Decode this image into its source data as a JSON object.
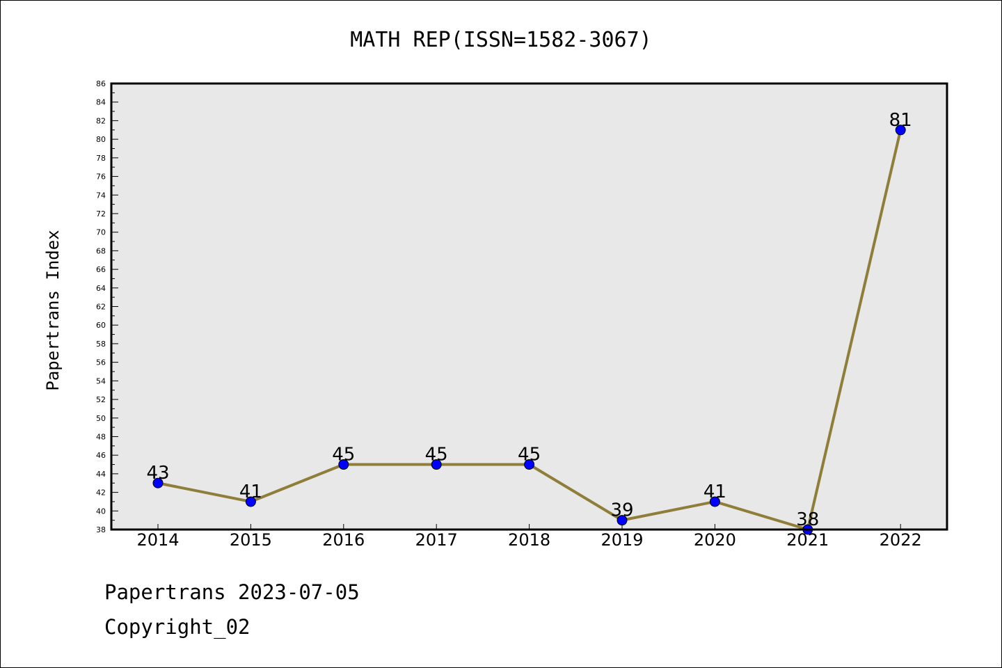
{
  "chart_data": {
    "type": "line",
    "title": "MATH REP(ISSN=1582-3067)",
    "ylabel": "Papertrans Index",
    "xlabel": "",
    "categories": [
      "2014",
      "2015",
      "2016",
      "2017",
      "2018",
      "2019",
      "2020",
      "2021",
      "2022"
    ],
    "values": [
      43,
      41,
      45,
      45,
      45,
      39,
      41,
      38,
      81
    ],
    "ylim": [
      38,
      86
    ],
    "ytick_step": 2,
    "yminor_step": 1,
    "grid": false,
    "legend": "none",
    "colors": {
      "line": "#8f7e3a",
      "marker": "#0000ff",
      "plot_background": "#e8e8e8"
    }
  },
  "footer": {
    "line1": "Papertrans 2023-07-05",
    "line2": "Copyright_02"
  }
}
